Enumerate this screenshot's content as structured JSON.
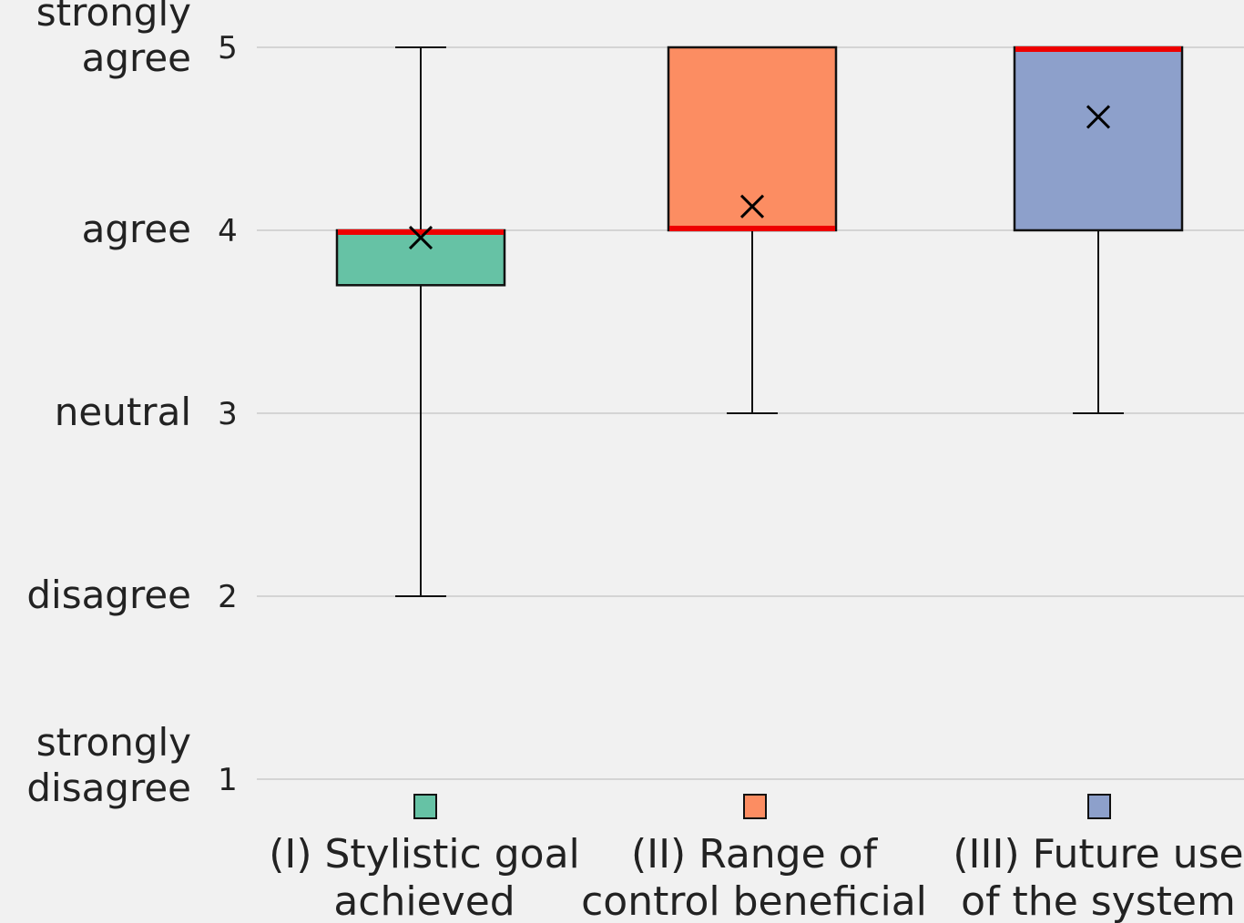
{
  "chart_data": {
    "type": "box",
    "ylim": [
      1,
      5
    ],
    "y_ticks": [
      1,
      2,
      3,
      4,
      5
    ],
    "y_tick_labels": [
      "1",
      "2",
      "3",
      "4",
      "5"
    ],
    "y_category_labels": [
      {
        "value": 5,
        "lines": [
          "strongly",
          "agree"
        ]
      },
      {
        "value": 4,
        "lines": [
          "agree"
        ]
      },
      {
        "value": 3,
        "lines": [
          "neutral"
        ]
      },
      {
        "value": 2,
        "lines": [
          "disagree"
        ]
      },
      {
        "value": 1,
        "lines": [
          "strongly",
          "disagree"
        ]
      }
    ],
    "grid": "horizontal",
    "median_color": "#ee0000",
    "series": [
      {
        "label_lines": [
          "(I) Stylistic goal",
          "achieved"
        ],
        "color": "#66c2a5",
        "min": 2,
        "q1": 3.7,
        "median": 4,
        "q3": 4,
        "max": 5,
        "mean": 3.96
      },
      {
        "label_lines": [
          "(II) Range of",
          "control beneficial"
        ],
        "color": "#fc8d62",
        "min": 3,
        "q1": 4,
        "median": 4,
        "q3": 5,
        "max": 5,
        "mean": 4.13
      },
      {
        "label_lines": [
          "(III) Future use",
          "of the system"
        ],
        "color": "#8da0cb",
        "min": 3,
        "q1": 4,
        "median": 5,
        "q3": 5,
        "max": 5,
        "mean": 4.62
      }
    ]
  }
}
